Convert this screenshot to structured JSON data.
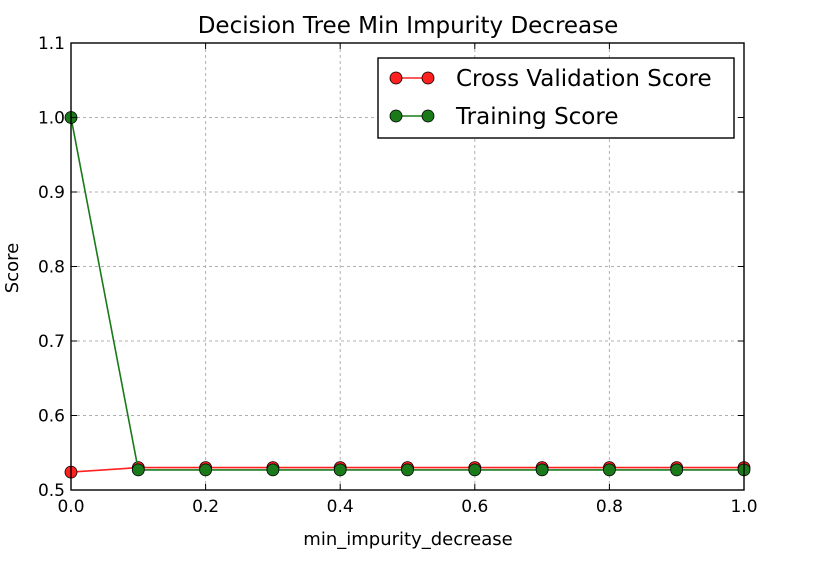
{
  "chart_data": {
    "type": "line",
    "title": "Decision Tree Min Impurity Decrease",
    "xlabel": "min_impurity_decrease",
    "ylabel": "Score",
    "xlim": [
      0.0,
      1.0
    ],
    "ylim": [
      0.5,
      1.1
    ],
    "x_ticks": [
      "0.0",
      "0.2",
      "0.4",
      "0.6",
      "0.8",
      "1.0"
    ],
    "y_ticks": [
      "0.5",
      "0.6",
      "0.7",
      "0.8",
      "0.9",
      "1.0",
      "1.1"
    ],
    "grid": true,
    "legend_position": "top-right",
    "x": [
      0.0,
      0.1,
      0.2,
      0.3,
      0.4,
      0.5,
      0.6,
      0.7,
      0.8,
      0.9,
      1.0
    ],
    "series": [
      {
        "name": "Cross Validation Score",
        "color": "#ff2020",
        "values": [
          0.524,
          0.53,
          0.53,
          0.53,
          0.53,
          0.53,
          0.53,
          0.53,
          0.53,
          0.53,
          0.53
        ]
      },
      {
        "name": "Training Score",
        "color": "#1a7a1a",
        "values": [
          1.0,
          0.527,
          0.527,
          0.527,
          0.527,
          0.527,
          0.527,
          0.527,
          0.527,
          0.527,
          0.527
        ]
      }
    ]
  }
}
